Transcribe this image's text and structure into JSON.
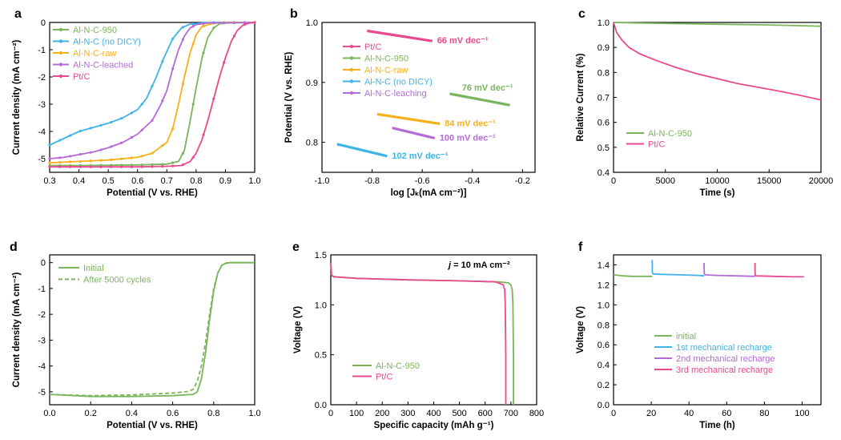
{
  "colors": {
    "green": "#7ab55c",
    "blue": "#3fb4e6",
    "orange": "#f5b01a",
    "purple": "#b56ad6",
    "pink": "#e8498f"
  },
  "chart_data": [
    {
      "panel": "a",
      "type": "line",
      "xlabel": "Potential (V vs. RHE)",
      "ylabel": "Current density (mA cm⁻²)",
      "xlim": [
        0.3,
        1.0
      ],
      "ylim": [
        -5.5,
        0
      ],
      "xticks": [
        "0.3",
        "0.4",
        "0.5",
        "0.6",
        "0.7",
        "0.8",
        "0.9",
        "1.0"
      ],
      "yticks": [
        "-5",
        "-4",
        "-3",
        "-2",
        "-1",
        "0"
      ],
      "legend": [
        "Al-N-C-950",
        "Al-N-C (no DICY)",
        "Al-N-C-raw",
        "Al-N-C-leached",
        "Pt/C"
      ],
      "series": [
        {
          "name": "Al-N-C-950",
          "color": "green",
          "x": [
            0.3,
            0.4,
            0.5,
            0.6,
            0.7,
            0.74,
            0.76,
            0.78,
            0.8,
            0.82,
            0.84,
            0.86,
            0.88,
            0.9,
            1.0
          ],
          "y": [
            -5.25,
            -5.25,
            -5.24,
            -5.23,
            -5.2,
            -5.1,
            -4.7,
            -3.6,
            -2.4,
            -1.3,
            -0.55,
            -0.2,
            -0.05,
            -0.02,
            0
          ]
        },
        {
          "name": "Al-N-C (no DICY)",
          "color": "blue",
          "x": [
            0.3,
            0.35,
            0.4,
            0.45,
            0.5,
            0.55,
            0.6,
            0.63,
            0.66,
            0.69,
            0.72,
            0.75,
            0.78,
            0.82,
            0.86,
            1.0
          ],
          "y": [
            -4.5,
            -4.25,
            -4.0,
            -3.85,
            -3.7,
            -3.5,
            -3.2,
            -2.8,
            -2.1,
            -1.3,
            -0.6,
            -0.2,
            -0.06,
            -0.02,
            0,
            0
          ]
        },
        {
          "name": "Al-N-C-raw",
          "color": "orange",
          "x": [
            0.3,
            0.4,
            0.5,
            0.6,
            0.65,
            0.7,
            0.72,
            0.74,
            0.76,
            0.78,
            0.8,
            0.82,
            0.86,
            0.9,
            1.0
          ],
          "y": [
            -5.15,
            -5.1,
            -5.05,
            -4.95,
            -4.8,
            -4.4,
            -3.9,
            -3.0,
            -2.0,
            -1.1,
            -0.45,
            -0.15,
            -0.03,
            0,
            0
          ]
        },
        {
          "name": "Al-N-C-leached",
          "color": "purple",
          "x": [
            0.3,
            0.35,
            0.4,
            0.45,
            0.5,
            0.55,
            0.6,
            0.65,
            0.68,
            0.7,
            0.72,
            0.74,
            0.76,
            0.78,
            0.8,
            0.84,
            1.0
          ],
          "y": [
            -5.0,
            -4.95,
            -4.85,
            -4.75,
            -4.6,
            -4.4,
            -4.1,
            -3.6,
            -3.0,
            -2.5,
            -1.7,
            -1.0,
            -0.5,
            -0.2,
            -0.08,
            -0.02,
            0
          ]
        },
        {
          "name": "Pt/C",
          "color": "pink",
          "x": [
            0.3,
            0.4,
            0.5,
            0.6,
            0.7,
            0.75,
            0.78,
            0.8,
            0.82,
            0.84,
            0.86,
            0.88,
            0.9,
            0.92,
            0.94,
            0.96,
            0.98,
            1.0
          ],
          "y": [
            -5.3,
            -5.3,
            -5.3,
            -5.3,
            -5.28,
            -5.25,
            -5.1,
            -4.8,
            -4.3,
            -3.6,
            -2.8,
            -2.0,
            -1.3,
            -0.7,
            -0.3,
            -0.1,
            -0.03,
            0
          ]
        }
      ]
    },
    {
      "panel": "b",
      "type": "line",
      "xlabel": "log [Jₖ(mA cm⁻²)]",
      "ylabel": "Potential (V vs. RHE)",
      "xlim": [
        -1.0,
        -0.15
      ],
      "ylim": [
        0.75,
        1.0
      ],
      "xticks": [
        "-1.0",
        "-0.8",
        "-0.6",
        "-0.4",
        "-0.2"
      ],
      "yticks": [
        "0.8",
        "0.9",
        "1.0"
      ],
      "legend": [
        "Pt/C",
        "Al-N-C-950",
        "Al-N-C-raw",
        "Al-N-C (no DICY)",
        "Al-N-C-leaching"
      ],
      "series": [
        {
          "name": "Pt/C",
          "color": "pink",
          "x": [
            -0.82,
            -0.56
          ],
          "y": [
            0.986,
            0.969
          ],
          "slope_label": "66 mV dec⁻¹"
        },
        {
          "name": "Al-N-C-950",
          "color": "green",
          "x": [
            -0.49,
            -0.25
          ],
          "y": [
            0.881,
            0.862
          ],
          "slope_label": "76 mV dec⁻¹"
        },
        {
          "name": "Al-N-C-raw",
          "color": "orange",
          "x": [
            -0.78,
            -0.53
          ],
          "y": [
            0.847,
            0.831
          ],
          "slope_label": "84 mV dec⁻¹"
        },
        {
          "name": "Al-N-C-leaching",
          "color": "purple",
          "x": [
            -0.72,
            -0.55
          ],
          "y": [
            0.824,
            0.807
          ],
          "slope_label": "100 mV dec⁻¹"
        },
        {
          "name": "Al-N-C (no DICY)",
          "color": "blue",
          "x": [
            -0.94,
            -0.74
          ],
          "y": [
            0.797,
            0.777
          ],
          "slope_label": "102 mV dec⁻¹"
        }
      ]
    },
    {
      "panel": "c",
      "type": "line",
      "xlabel": "Time (s)",
      "ylabel": "Relative Current (%)",
      "xlim": [
        0,
        20000
      ],
      "ylim": [
        0.4,
        1.0
      ],
      "xticks": [
        "0",
        "5000",
        "10000",
        "15000",
        "20000"
      ],
      "yticks": [
        "0.4",
        "0.5",
        "0.6",
        "0.7",
        "0.8",
        "0.9",
        "1.0"
      ],
      "legend": [
        "Al-N-C-950",
        "Pt/C"
      ],
      "series": [
        {
          "name": "Al-N-C-950",
          "color": "green",
          "x": [
            0,
            2000,
            5000,
            10000,
            15000,
            20000
          ],
          "y": [
            1.0,
            0.998,
            0.996,
            0.993,
            0.99,
            0.985
          ]
        },
        {
          "name": "Pt/C",
          "color": "pink",
          "x": [
            0,
            300,
            800,
            1500,
            2500,
            4000,
            6000,
            8000,
            10000,
            12000,
            14000,
            16000,
            18000,
            20000
          ],
          "y": [
            1.0,
            0.96,
            0.93,
            0.9,
            0.875,
            0.85,
            0.82,
            0.795,
            0.775,
            0.755,
            0.74,
            0.725,
            0.708,
            0.69
          ]
        }
      ]
    },
    {
      "panel": "d",
      "type": "line",
      "xlabel": "Potential (V vs. RHE)",
      "ylabel": "Current density (mA cm⁻²)",
      "xlim": [
        0.0,
        1.0
      ],
      "ylim": [
        -5.5,
        0.3
      ],
      "xticks": [
        "0.0",
        "0.2",
        "0.4",
        "0.6",
        "0.8",
        "1.0"
      ],
      "yticks": [
        "-5",
        "-4",
        "-3",
        "-2",
        "-1",
        "0"
      ],
      "legend": [
        "Initial",
        "After 5000 cycles"
      ],
      "series": [
        {
          "name": "Initial",
          "color": "green",
          "dash": false,
          "x": [
            0,
            0.2,
            0.4,
            0.6,
            0.7,
            0.72,
            0.74,
            0.76,
            0.78,
            0.8,
            0.82,
            0.84,
            0.86,
            0.88,
            0.9,
            1.0
          ],
          "y": [
            -5.1,
            -5.18,
            -5.18,
            -5.15,
            -5.1,
            -5.0,
            -4.5,
            -3.5,
            -2.2,
            -1.1,
            -0.4,
            -0.1,
            -0.02,
            0,
            0,
            0
          ]
        },
        {
          "name": "After 5000 cycles",
          "color": "green",
          "dash": true,
          "x": [
            0,
            0.2,
            0.4,
            0.6,
            0.68,
            0.7,
            0.72,
            0.74,
            0.76,
            0.78,
            0.8,
            0.82,
            0.84,
            0.86,
            0.88,
            1.0
          ],
          "y": [
            -5.1,
            -5.15,
            -5.12,
            -5.05,
            -4.98,
            -4.9,
            -4.6,
            -4.0,
            -3.1,
            -2.0,
            -1.0,
            -0.4,
            -0.1,
            -0.02,
            0,
            0
          ]
        }
      ]
    },
    {
      "panel": "e",
      "type": "line",
      "xlabel": "Specific capacity (mAh g⁻¹)",
      "ylabel": "Voltage (V)",
      "xlim": [
        0,
        800
      ],
      "ylim": [
        0,
        1.5
      ],
      "xticks": [
        "0",
        "100",
        "200",
        "300",
        "400",
        "500",
        "600",
        "700",
        "800"
      ],
      "yticks": [
        "0.0",
        "0.5",
        "1.0",
        "1.5"
      ],
      "annotation_j": "j",
      "annotation": " = 10 mA cm⁻²",
      "legend": [
        "Al-N-C-950",
        "Pt/C"
      ],
      "series": [
        {
          "name": "Al-N-C-950",
          "color": "green",
          "x": [
            0,
            5,
            20,
            100,
            300,
            500,
            650,
            690,
            700,
            705,
            708,
            710,
            710
          ],
          "y": [
            1.31,
            1.29,
            1.28,
            1.265,
            1.25,
            1.24,
            1.23,
            1.22,
            1.2,
            1.15,
            1.0,
            0.5,
            0
          ]
        },
        {
          "name": "Pt/C",
          "color": "pink",
          "x": [
            0,
            3,
            10,
            100,
            300,
            500,
            640,
            670,
            676,
            678,
            680,
            680
          ],
          "y": [
            1.42,
            1.3,
            1.28,
            1.265,
            1.25,
            1.24,
            1.23,
            1.2,
            1.15,
            1.0,
            0.5,
            0
          ]
        }
      ]
    },
    {
      "panel": "f",
      "type": "line",
      "xlabel": "Time (h)",
      "ylabel": "Voltage (V)",
      "xlim": [
        0,
        110
      ],
      "ylim": [
        0,
        1.5
      ],
      "xticks": [
        "0",
        "20",
        "40",
        "60",
        "80",
        "100"
      ],
      "yticks": [
        "0.0",
        "0.2",
        "0.4",
        "0.6",
        "0.8",
        "1.0",
        "1.2",
        "1.4"
      ],
      "legend": [
        "initial",
        "1st mechanical recharge",
        "2nd mechanical recharge",
        "3rd mechanical recharge"
      ],
      "series": [
        {
          "name": "initial",
          "color": "green",
          "x": [
            0,
            5,
            10,
            15,
            20.5
          ],
          "y": [
            1.3,
            1.29,
            1.285,
            1.285,
            1.285
          ]
        },
        {
          "name": "1st mechanical recharge",
          "color": "blue",
          "x": [
            20.5,
            20.6,
            21,
            25,
            35,
            45,
            48
          ],
          "y": [
            1.45,
            1.32,
            1.31,
            1.305,
            1.3,
            1.295,
            1.29
          ]
        },
        {
          "name": "2nd mechanical recharge",
          "color": "purple",
          "x": [
            48,
            48.1,
            48.5,
            55,
            65,
            75
          ],
          "y": [
            1.42,
            1.31,
            1.3,
            1.295,
            1.29,
            1.285
          ]
        },
        {
          "name": "3rd mechanical recharge",
          "color": "pink",
          "x": [
            75,
            75.1,
            75.5,
            85,
            95,
            101
          ],
          "y": [
            1.42,
            1.3,
            1.29,
            1.285,
            1.28,
            1.28
          ]
        }
      ]
    }
  ]
}
